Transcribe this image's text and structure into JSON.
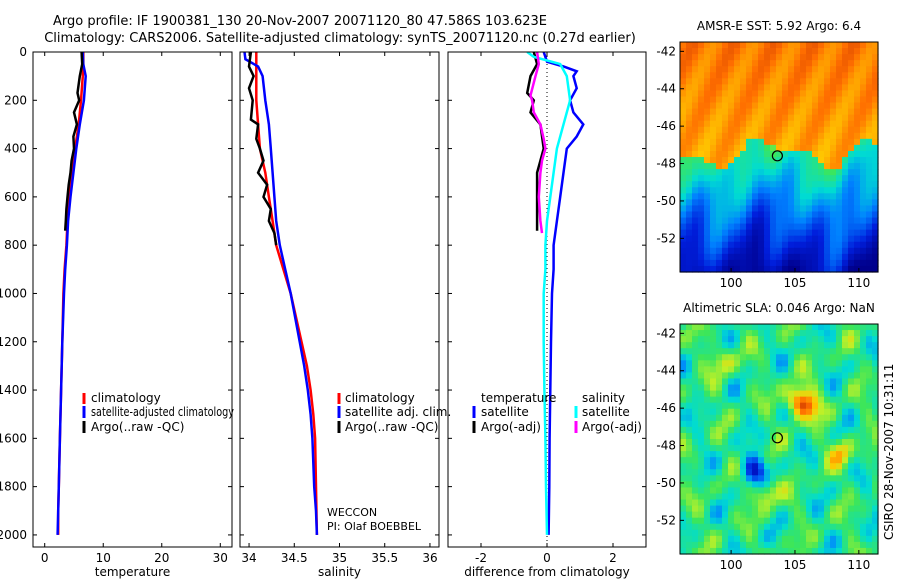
{
  "header": {
    "line1": "Argo profile: IF 1900381_130 20-Nov-2007 20071120_80 47.586S 103.623E",
    "line2": "Climatology: CARS2006. Satellite-adjusted climatology: synTS_20071120.nc (0.27d earlier)"
  },
  "stamp": "CSIRO 28-Nov-2007 10:31:11",
  "colors": {
    "red": "#ff0000",
    "blue": "#0000ff",
    "black": "#000000",
    "cyan": "#00ffff",
    "magenta": "#ff00ff"
  },
  "chart_data": [
    {
      "type": "line",
      "id": "temperature",
      "xlabel": "temperature",
      "xlim": [
        -2,
        32
      ],
      "ylim": [
        0,
        2050
      ],
      "xticks": [
        0,
        10,
        20,
        30
      ],
      "yticks": [
        0,
        200,
        400,
        600,
        800,
        1000,
        1200,
        1400,
        1600,
        1800,
        2000
      ],
      "legend": [
        "climatology",
        "satellite-adjusted climatology",
        "Argo(..raw -QC)"
      ],
      "series": [
        {
          "name": "climatology",
          "color": "red",
          "points": [
            [
              6.6,
              0
            ],
            [
              6.6,
              50
            ],
            [
              6.5,
              100
            ],
            [
              6.2,
              200
            ],
            [
              5.8,
              300
            ],
            [
              5.2,
              400
            ],
            [
              4.7,
              500
            ],
            [
              4.2,
              600
            ],
            [
              3.9,
              700
            ],
            [
              3.7,
              800
            ],
            [
              3.4,
              900
            ],
            [
              3.2,
              1000
            ],
            [
              3.0,
              1200
            ],
            [
              2.8,
              1400
            ],
            [
              2.6,
              1600
            ],
            [
              2.4,
              1800
            ],
            [
              2.3,
              1900
            ],
            [
              2.3,
              2000
            ]
          ]
        },
        {
          "name": "satellite-adjusted climatology",
          "color": "blue",
          "points": [
            [
              6.5,
              0
            ],
            [
              6.6,
              50
            ],
            [
              7.0,
              100
            ],
            [
              6.7,
              200
            ],
            [
              6.0,
              300
            ],
            [
              5.4,
              400
            ],
            [
              4.9,
              500
            ],
            [
              4.4,
              600
            ],
            [
              4.0,
              700
            ],
            [
              3.8,
              800
            ],
            [
              3.5,
              900
            ],
            [
              3.3,
              1000
            ],
            [
              3.0,
              1200
            ],
            [
              2.8,
              1400
            ],
            [
              2.6,
              1600
            ],
            [
              2.4,
              1800
            ],
            [
              2.3,
              1900
            ],
            [
              2.2,
              2000
            ]
          ]
        },
        {
          "name": "Argo(..raw -QC)",
          "color": "black",
          "points": [
            [
              6.3,
              0
            ],
            [
              6.4,
              50
            ],
            [
              6.0,
              100
            ],
            [
              5.6,
              170
            ],
            [
              5.9,
              200
            ],
            [
              5.0,
              250
            ],
            [
              5.5,
              300
            ],
            [
              4.9,
              350
            ],
            [
              5.0,
              400
            ],
            [
              4.6,
              450
            ],
            [
              4.4,
              500
            ],
            [
              4.1,
              550
            ],
            [
              3.9,
              600
            ],
            [
              3.7,
              650
            ],
            [
              3.6,
              700
            ],
            [
              3.5,
              740
            ]
          ]
        }
      ]
    },
    {
      "type": "line",
      "id": "salinity",
      "xlabel": "salinity",
      "xlim": [
        33.9,
        36.1
      ],
      "ylim": [
        0,
        2050
      ],
      "xticks": [
        34,
        34.5,
        35,
        35.5,
        36
      ],
      "legend": [
        "climatology",
        "satellite adj. clim.",
        "Argo(..raw -QC)"
      ],
      "annotation": [
        "WECCON",
        "PI: Olaf BOEBBEL"
      ],
      "series": [
        {
          "name": "climatology",
          "color": "red",
          "points": [
            [
              34.08,
              0
            ],
            [
              34.08,
              100
            ],
            [
              34.08,
              200
            ],
            [
              34.1,
              300
            ],
            [
              34.12,
              400
            ],
            [
              34.18,
              500
            ],
            [
              34.22,
              600
            ],
            [
              34.26,
              700
            ],
            [
              34.3,
              800
            ],
            [
              34.38,
              900
            ],
            [
              34.46,
              1000
            ],
            [
              34.52,
              1100
            ],
            [
              34.58,
              1200
            ],
            [
              34.64,
              1300
            ],
            [
              34.68,
              1400
            ],
            [
              34.71,
              1500
            ],
            [
              34.73,
              1600
            ],
            [
              34.74,
              1800
            ],
            [
              34.75,
              2000
            ]
          ]
        },
        {
          "name": "satellite adj. clim.",
          "color": "blue",
          "points": [
            [
              33.95,
              0
            ],
            [
              33.96,
              30
            ],
            [
              34.1,
              60
            ],
            [
              34.15,
              100
            ],
            [
              34.18,
              200
            ],
            [
              34.22,
              300
            ],
            [
              34.24,
              400
            ],
            [
              34.26,
              500
            ],
            [
              34.28,
              600
            ],
            [
              34.3,
              700
            ],
            [
              34.34,
              800
            ],
            [
              34.4,
              900
            ],
            [
              34.46,
              1000
            ],
            [
              34.51,
              1100
            ],
            [
              34.56,
              1200
            ],
            [
              34.61,
              1300
            ],
            [
              34.65,
              1400
            ],
            [
              34.68,
              1500
            ],
            [
              34.7,
              1600
            ],
            [
              34.71,
              1700
            ],
            [
              34.72,
              1800
            ],
            [
              34.74,
              1900
            ],
            [
              34.75,
              2000
            ]
          ]
        },
        {
          "name": "Argo(..raw -QC)",
          "color": "black",
          "points": [
            [
              34.02,
              0
            ],
            [
              34.0,
              60
            ],
            [
              34.05,
              100
            ],
            [
              34.0,
              150
            ],
            [
              34.04,
              200
            ],
            [
              34.02,
              280
            ],
            [
              34.1,
              300
            ],
            [
              34.08,
              360
            ],
            [
              34.12,
              400
            ],
            [
              34.16,
              450
            ],
            [
              34.1,
              500
            ],
            [
              34.2,
              550
            ],
            [
              34.16,
              600
            ],
            [
              34.24,
              650
            ],
            [
              34.22,
              700
            ],
            [
              34.28,
              750
            ],
            [
              34.3,
              800
            ]
          ]
        }
      ]
    },
    {
      "type": "line",
      "id": "difference",
      "xlabel": "difference from climatology",
      "xlim": [
        -3,
        3
      ],
      "ylim": [
        0,
        2050
      ],
      "xticks": [
        -2,
        0,
        2
      ],
      "legend_left_title": "temperature",
      "legend_right_title": "salinity",
      "legend": [
        "satellite",
        "Argo(-adj)",
        "satellite",
        "Argo(-adj)"
      ],
      "series": [
        {
          "name": "temperature satellite",
          "color": "blue",
          "points": [
            [
              -0.1,
              0
            ],
            [
              0.0,
              40
            ],
            [
              0.5,
              60
            ],
            [
              0.9,
              80
            ],
            [
              0.8,
              100
            ],
            [
              0.9,
              150
            ],
            [
              0.7,
              200
            ],
            [
              0.8,
              250
            ],
            [
              1.1,
              300
            ],
            [
              0.9,
              350
            ],
            [
              0.6,
              400
            ],
            [
              0.5,
              500
            ],
            [
              0.4,
              600
            ],
            [
              0.3,
              700
            ],
            [
              0.2,
              800
            ],
            [
              0.2,
              900
            ],
            [
              0.15,
              1000
            ],
            [
              0.12,
              1200
            ],
            [
              0.1,
              1400
            ],
            [
              0.08,
              1600
            ],
            [
              0.07,
              1800
            ],
            [
              0.05,
              2000
            ]
          ]
        },
        {
          "name": "temperature Argo(-adj)",
          "color": "black",
          "points": [
            [
              -0.4,
              0
            ],
            [
              -0.3,
              50
            ],
            [
              -0.5,
              100
            ],
            [
              -0.6,
              170
            ],
            [
              -0.4,
              200
            ],
            [
              -0.5,
              250
            ],
            [
              -0.2,
              300
            ],
            [
              -0.1,
              400
            ],
            [
              -0.2,
              450
            ],
            [
              -0.3,
              500
            ],
            [
              -0.3,
              600
            ],
            [
              -0.3,
              700
            ],
            [
              -0.3,
              740
            ]
          ]
        },
        {
          "name": "salinity satellite",
          "color": "cyan",
          "points": [
            [
              -0.6,
              0
            ],
            [
              -0.4,
              20
            ],
            [
              0.4,
              50
            ],
            [
              0.6,
              100
            ],
            [
              0.7,
              200
            ],
            [
              0.5,
              300
            ],
            [
              0.3,
              400
            ],
            [
              0.2,
              500
            ],
            [
              0.1,
              600
            ],
            [
              0.0,
              700
            ],
            [
              -0.05,
              800
            ],
            [
              -0.05,
              900
            ],
            [
              -0.1,
              1000
            ],
            [
              -0.1,
              1200
            ],
            [
              -0.08,
              1400
            ],
            [
              -0.05,
              1600
            ],
            [
              -0.03,
              1800
            ],
            [
              0.0,
              2000
            ]
          ]
        },
        {
          "name": "salinity Argo(-adj)",
          "color": "magenta",
          "points": [
            [
              -0.3,
              0
            ],
            [
              -0.25,
              50
            ],
            [
              -0.35,
              100
            ],
            [
              -0.5,
              180
            ],
            [
              -0.45,
              200
            ],
            [
              -0.4,
              250
            ],
            [
              -0.2,
              300
            ],
            [
              -0.1,
              360
            ],
            [
              -0.05,
              400
            ],
            [
              -0.15,
              450
            ],
            [
              -0.2,
              500
            ],
            [
              -0.25,
              600
            ],
            [
              -0.2,
              700
            ],
            [
              -0.15,
              750
            ]
          ]
        }
      ]
    },
    {
      "type": "heatmap",
      "id": "sst-map",
      "title": "AMSR-E SST: 5.92 Argo: 6.4",
      "xlim": [
        96,
        111.5
      ],
      "ylim": [
        -53.8,
        -41.5
      ],
      "xticks": [
        100,
        105,
        110
      ],
      "yticks": [
        -42,
        -44,
        -46,
        -48,
        -50,
        -52
      ],
      "marker": [
        103.623,
        -47.586
      ]
    },
    {
      "type": "heatmap",
      "id": "sla-map",
      "title": "Altimetric SLA: 0.046 Argo: NaN",
      "xlim": [
        96,
        111.5
      ],
      "ylim": [
        -53.8,
        -41.5
      ],
      "xticks": [
        100,
        105,
        110
      ],
      "yticks": [
        -42,
        -44,
        -46,
        -48,
        -50,
        -52
      ],
      "marker": [
        103.623,
        -47.586
      ]
    }
  ]
}
